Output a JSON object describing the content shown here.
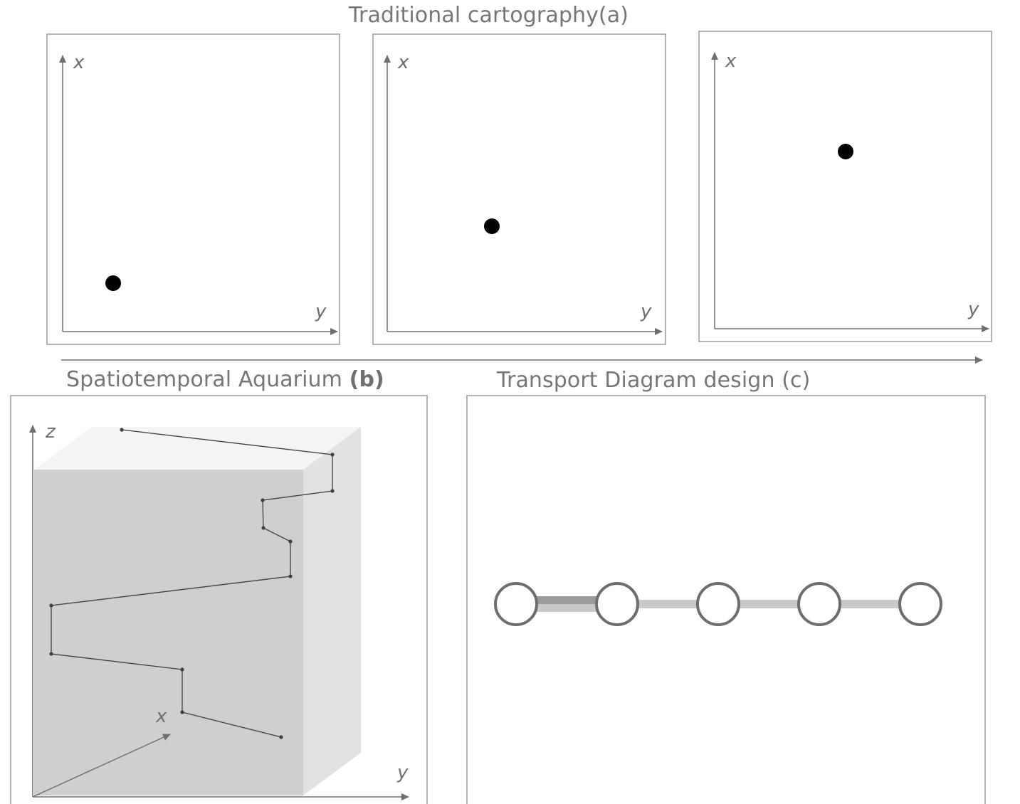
{
  "panels": {
    "a": {
      "title": "Traditional cartography(a)",
      "frames": [
        {
          "x_label": "x",
          "y_label": "y"
        },
        {
          "x_label": "x",
          "y_label": "y"
        },
        {
          "x_label": "x",
          "y_label": "y"
        }
      ]
    },
    "b": {
      "title_main": "Spatiotemporal Aquarium ",
      "title_bold": "(b)",
      "z_label": "z",
      "x_label": "x",
      "y_label": "y"
    },
    "c": {
      "title": "Transport Diagram design (c)",
      "station_count": 5
    }
  },
  "colors": {
    "frame_border": "#9a9a9a",
    "axis": "#6f6f6f",
    "title_text": "#767676",
    "point": "#000000",
    "cube_front": "#cfcfcf",
    "cube_top": "#f4f4f4",
    "cube_side": "#e1e1e1",
    "trajectory": "#3f3f3f",
    "station_stroke": "#6d6d6d",
    "link_dark": "#9a9a9a",
    "link_light": "#c8c8c8"
  }
}
